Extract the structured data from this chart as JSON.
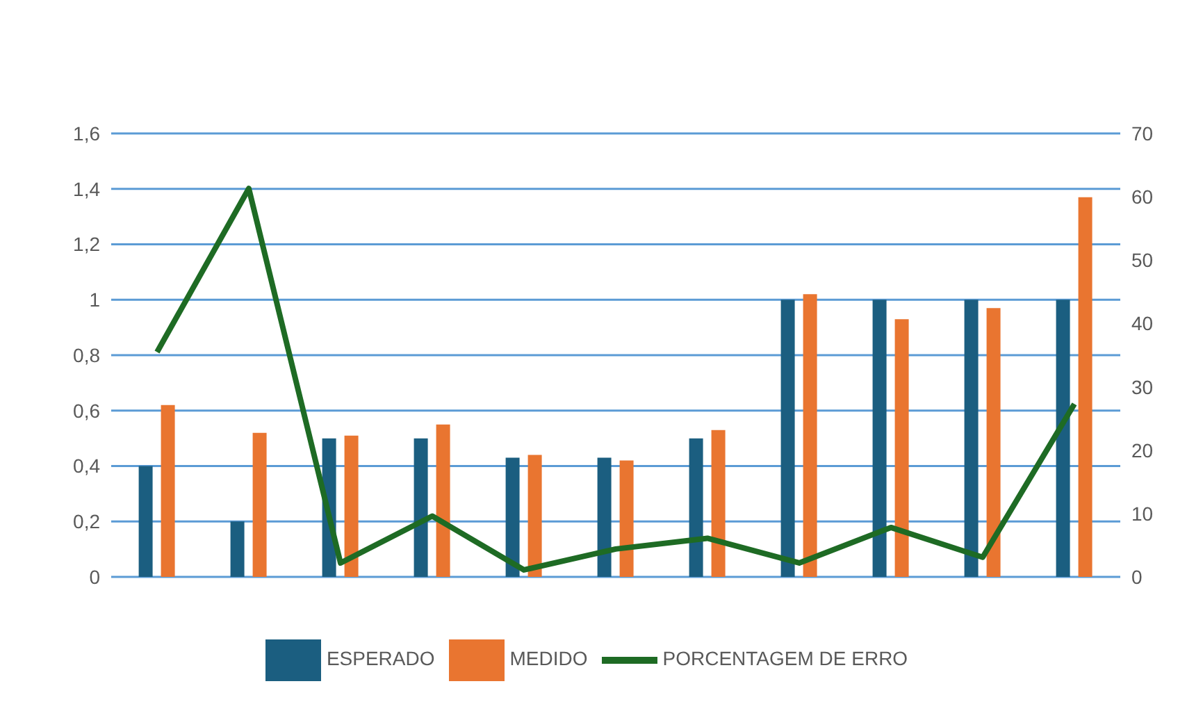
{
  "chart_data": {
    "type": "bar",
    "categories": [
      null,
      null,
      null,
      null,
      null,
      null,
      null,
      null,
      null,
      null,
      null
    ],
    "series": [
      {
        "name": "ESPERADO",
        "color": "#1b5e80",
        "values": [
          0.4,
          0.2,
          0.5,
          0.5,
          0.43,
          0.43,
          0.5,
          1,
          1,
          1,
          1
        ]
      },
      {
        "name": "MEDIDO",
        "color": "#e97530",
        "values": [
          0.62,
          0.52,
          0.51,
          0.55,
          0.44,
          0.42,
          0.53,
          1.02,
          0.93,
          0.97,
          1.37
        ]
      },
      {
        "name": "PORCENTAGEM DE ERRO",
        "type": "line",
        "axis": "y2",
        "color": "#1e6b24",
        "marker": "none",
        "values": [
          35.5,
          61.3,
          2.2,
          9.6,
          1.1,
          4.4,
          6.1,
          2.2,
          7.8,
          3.1,
          27.3
        ]
      }
    ],
    "ylim": [
      0,
      1.6
    ],
    "yticks": [
      {
        "value": 0,
        "label": "0"
      },
      {
        "value": 0.2,
        "label": "0,2"
      },
      {
        "value": 0.4,
        "label": "0,4"
      },
      {
        "value": 0.6,
        "label": "0,6"
      },
      {
        "value": 0.8,
        "label": "0,8"
      },
      {
        "value": 1,
        "label": "1"
      },
      {
        "value": 1.2,
        "label": "1,2"
      },
      {
        "value": 1.4,
        "label": "1,4"
      },
      {
        "value": 1.6,
        "label": "1,6"
      }
    ],
    "y2lim": [
      0,
      70
    ],
    "y2ticks": [
      0,
      10,
      20,
      30,
      40,
      50,
      60,
      70
    ],
    "grid": "y",
    "legend": "bottom"
  }
}
